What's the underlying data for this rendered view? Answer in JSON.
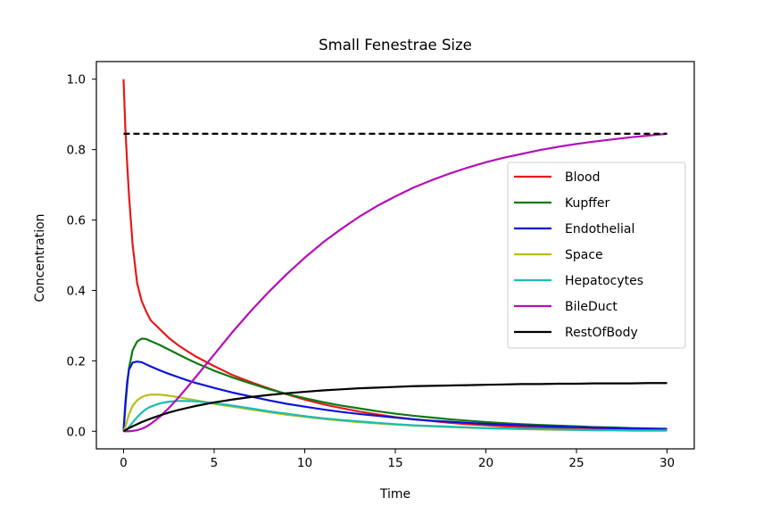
{
  "chart_data": {
    "type": "line",
    "title": "Small Fenestrae Size",
    "xlabel": "Time",
    "ylabel": "Concentration",
    "xlim": [
      -1.5,
      31.5
    ],
    "ylim": [
      -0.05,
      1.05
    ],
    "xticks": [
      0,
      5,
      10,
      15,
      20,
      25,
      30
    ],
    "yticks": [
      0.0,
      0.2,
      0.4,
      0.6,
      0.8,
      1.0
    ],
    "xtick_labels": [
      "0",
      "5",
      "10",
      "15",
      "20",
      "25",
      "30"
    ],
    "ytick_labels": [
      "0.0",
      "0.2",
      "0.4",
      "0.6",
      "0.8",
      "1.0"
    ],
    "grid": false,
    "legend_position": "center-right",
    "reference_line": {
      "y": 0.845,
      "x_range": [
        0,
        30
      ],
      "color": "#000000",
      "style": "dashed"
    },
    "x": [
      0,
      0.1,
      0.2,
      0.3,
      0.5,
      0.75,
      1,
      1.25,
      1.5,
      2,
      2.5,
      3,
      3.5,
      4,
      5,
      6,
      7,
      8,
      9,
      10,
      11,
      12,
      13,
      14,
      15,
      16,
      17,
      18,
      19,
      20,
      21,
      22,
      23,
      24,
      25,
      26,
      27,
      28,
      29,
      30
    ],
    "series": [
      {
        "name": "Blood",
        "color": "#e41a1a",
        "values": [
          1.0,
          0.86,
          0.76,
          0.67,
          0.53,
          0.42,
          0.37,
          0.34,
          0.315,
          0.29,
          0.265,
          0.245,
          0.228,
          0.212,
          0.185,
          0.16,
          0.14,
          0.122,
          0.105,
          0.09,
          0.077,
          0.066,
          0.056,
          0.048,
          0.04,
          0.034,
          0.029,
          0.024,
          0.02,
          0.017,
          0.014,
          0.012,
          0.01,
          0.008,
          0.007,
          0.006,
          0.005,
          0.004,
          0.003,
          0.003
        ]
      },
      {
        "name": "Kupffer",
        "color": "#0e7a0e",
        "values": [
          0.0,
          0.07,
          0.13,
          0.18,
          0.23,
          0.255,
          0.263,
          0.262,
          0.256,
          0.245,
          0.232,
          0.219,
          0.206,
          0.194,
          0.172,
          0.153,
          0.136,
          0.12,
          0.106,
          0.094,
          0.083,
          0.073,
          0.065,
          0.057,
          0.05,
          0.044,
          0.039,
          0.034,
          0.03,
          0.026,
          0.023,
          0.02,
          0.018,
          0.016,
          0.014,
          0.012,
          0.011,
          0.009,
          0.008,
          0.007
        ]
      },
      {
        "name": "Endothelial",
        "color": "#0a14d8",
        "values": [
          0.0,
          0.08,
          0.14,
          0.175,
          0.195,
          0.198,
          0.196,
          0.19,
          0.184,
          0.173,
          0.163,
          0.154,
          0.145,
          0.137,
          0.123,
          0.11,
          0.099,
          0.088,
          0.078,
          0.07,
          0.062,
          0.055,
          0.049,
          0.044,
          0.039,
          0.034,
          0.03,
          0.027,
          0.024,
          0.021,
          0.019,
          0.017,
          0.015,
          0.013,
          0.012,
          0.01,
          0.009,
          0.008,
          0.007,
          0.006
        ]
      },
      {
        "name": "Space",
        "color": "#b8bd1a",
        "values": [
          0.0,
          0.012,
          0.03,
          0.048,
          0.072,
          0.088,
          0.097,
          0.102,
          0.104,
          0.104,
          0.101,
          0.097,
          0.092,
          0.088,
          0.078,
          0.07,
          0.062,
          0.054,
          0.047,
          0.041,
          0.035,
          0.03,
          0.026,
          0.022,
          0.019,
          0.016,
          0.014,
          0.012,
          0.01,
          0.009,
          0.007,
          0.006,
          0.005,
          0.004,
          0.004,
          0.003,
          0.003,
          0.002,
          0.002,
          0.002
        ]
      },
      {
        "name": "Hepatocytes",
        "color": "#1abcb4",
        "values": [
          0.0,
          0.002,
          0.006,
          0.012,
          0.025,
          0.04,
          0.053,
          0.063,
          0.07,
          0.079,
          0.084,
          0.086,
          0.086,
          0.085,
          0.08,
          0.073,
          0.065,
          0.057,
          0.05,
          0.043,
          0.037,
          0.032,
          0.028,
          0.024,
          0.02,
          0.017,
          0.015,
          0.013,
          0.011,
          0.009,
          0.008,
          0.007,
          0.006,
          0.005,
          0.004,
          0.003,
          0.003,
          0.002,
          0.002,
          0.002
        ]
      },
      {
        "name": "BileDuct",
        "color": "#b40fb8",
        "values": [
          0.0,
          0.0,
          0.0,
          0.0,
          0.001,
          0.003,
          0.007,
          0.013,
          0.021,
          0.041,
          0.066,
          0.094,
          0.124,
          0.155,
          0.218,
          0.281,
          0.34,
          0.395,
          0.446,
          0.493,
          0.536,
          0.574,
          0.609,
          0.64,
          0.667,
          0.692,
          0.713,
          0.732,
          0.749,
          0.764,
          0.777,
          0.788,
          0.799,
          0.808,
          0.816,
          0.823,
          0.829,
          0.835,
          0.84,
          0.845
        ]
      },
      {
        "name": "RestOfBody",
        "color": "#000000",
        "values": [
          0.0,
          0.003,
          0.006,
          0.009,
          0.014,
          0.02,
          0.026,
          0.031,
          0.036,
          0.045,
          0.053,
          0.06,
          0.066,
          0.072,
          0.082,
          0.09,
          0.097,
          0.103,
          0.108,
          0.112,
          0.116,
          0.119,
          0.122,
          0.124,
          0.126,
          0.128,
          0.129,
          0.13,
          0.131,
          0.132,
          0.133,
          0.134,
          0.134,
          0.135,
          0.135,
          0.136,
          0.136,
          0.136,
          0.137,
          0.137
        ]
      }
    ]
  }
}
